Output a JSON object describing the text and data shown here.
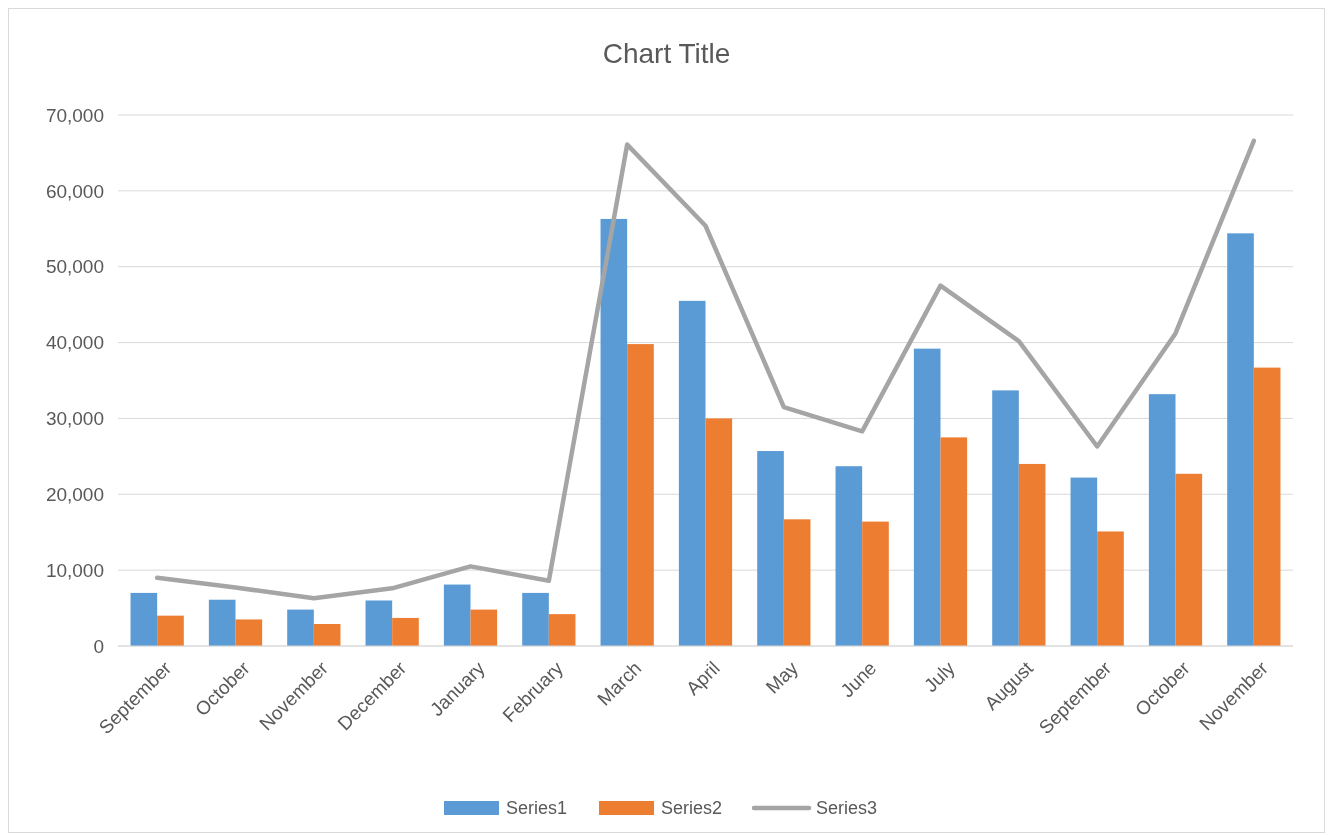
{
  "chart_data": {
    "type": "bar",
    "title": "Chart Title",
    "categories": [
      "September",
      "October",
      "November",
      "December",
      "January",
      "February",
      "March",
      "April",
      "May",
      "June",
      "July",
      "August",
      "September",
      "October",
      "November"
    ],
    "series": [
      {
        "name": "Series1",
        "color": "#5b9bd5",
        "values": [
          7000,
          6100,
          4800,
          6000,
          8100,
          7000,
          56300,
          45500,
          25700,
          23700,
          39200,
          33700,
          22200,
          33200,
          54400
        ]
      },
      {
        "name": "Series2",
        "color": "#ed7d31",
        "values": [
          4000,
          3500,
          2900,
          3700,
          4800,
          4200,
          39800,
          30000,
          16700,
          16400,
          27500,
          24000,
          15100,
          22700,
          36700
        ]
      },
      {
        "name": "Series3",
        "type": "line",
        "color": "#a5a5a5",
        "values": [
          9000,
          7700,
          6300,
          7600,
          10500,
          8600,
          66100,
          55400,
          31500,
          28300,
          47500,
          40200,
          26300,
          41200,
          66600
        ]
      }
    ],
    "ylim": [
      0,
      70000
    ],
    "yticks": [
      0,
      {
        "value": 10000,
        "label": "10,000"
      },
      {
        "value": 20000,
        "label": "20,000"
      },
      {
        "value": 30000,
        "label": "30,000"
      },
      {
        "value": 40000,
        "label": "40,000"
      },
      {
        "value": 50000,
        "label": "50,000"
      },
      {
        "value": 60000,
        "label": "60,000"
      },
      {
        "value": 70000,
        "label": "70,000"
      }
    ],
    "grid": "y",
    "legend": "bottom",
    "marker": "none",
    "line_style": "solid"
  }
}
